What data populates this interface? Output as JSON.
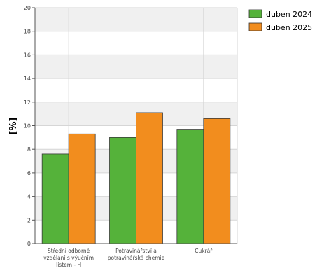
{
  "chart_data": {
    "type": "bar",
    "categories": [
      [
        "Střední odborné",
        "vzdělání s výučním",
        "listem - H"
      ],
      [
        "Potravinářství a",
        "potravinářská chemie"
      ],
      [
        "Cukrář"
      ]
    ],
    "series": [
      {
        "name": "duben 2024",
        "values": [
          7.6,
          9.0,
          9.7
        ],
        "color": "#55b23a"
      },
      {
        "name": "duben 2025",
        "values": [
          9.3,
          11.1,
          10.6
        ],
        "color": "#f28d1e"
      }
    ],
    "ylabel": "[%]",
    "ylim": [
      0,
      20
    ],
    "yticks": [
      "0",
      "2",
      "4",
      "6",
      "8",
      "10",
      "12",
      "14",
      "16",
      "18",
      "20"
    ],
    "grid": true,
    "legend": "top-right",
    "band_color": "#f0f0f0",
    "grid_color": "#d6d6d6",
    "bar_border": "#3a3a3a"
  }
}
